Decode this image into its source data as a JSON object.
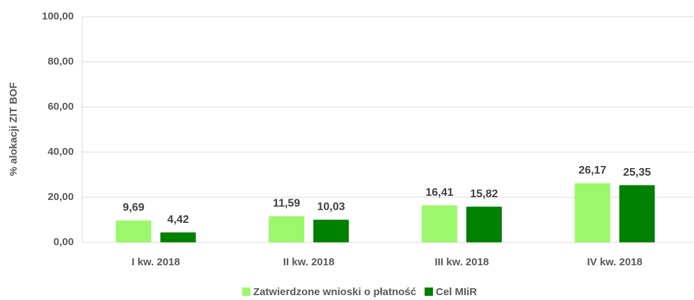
{
  "chart_data": {
    "type": "bar",
    "y_label": "% alokacji ZIT BOF",
    "categories": [
      "I kw. 2018",
      "II kw. 2018",
      "III kw. 2018",
      "IV kw. 2018"
    ],
    "series": [
      {
        "name": "Zatwierdzone wnioski o płatność",
        "color": "#9cf76c",
        "values": [
          9.69,
          11.59,
          16.41,
          26.17
        ],
        "value_labels": [
          "9,69",
          "11,59",
          "16,41",
          "26,17"
        ]
      },
      {
        "name": "Cel MIiR",
        "color": "#008000",
        "values": [
          4.42,
          10.03,
          15.82,
          25.35
        ],
        "value_labels": [
          "4,42",
          "10,03",
          "15,82",
          "25,35"
        ]
      }
    ],
    "ylim": [
      0,
      100
    ],
    "yticks": [
      {
        "value": 0,
        "label": "0,00"
      },
      {
        "value": 20,
        "label": "20,00"
      },
      {
        "value": 40,
        "label": "40,00"
      },
      {
        "value": 60,
        "label": "60,00"
      },
      {
        "value": 80,
        "label": "80,00"
      },
      {
        "value": 100,
        "label": "100,00"
      }
    ],
    "grid": true,
    "legend": "bottom"
  }
}
